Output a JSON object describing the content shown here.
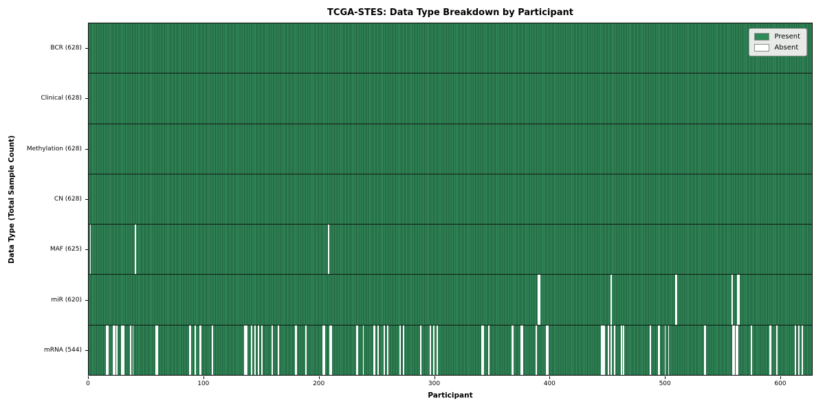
{
  "chart_data": {
    "type": "heatmap",
    "title": "TCGA-STES: Data Type Breakdown by Participant",
    "xlabel": "Participant",
    "ylabel": "Data Type (Total Sample Count)",
    "x_ticks": [
      0,
      100,
      200,
      300,
      400,
      500,
      600
    ],
    "x_max": 628,
    "grid": false,
    "legend": {
      "position": "upper right",
      "entries": [
        {
          "label": "Present",
          "color": "#2e8b57"
        },
        {
          "label": "Absent",
          "color": "#ffffff"
        }
      ]
    },
    "colors": {
      "present": "#2e8b57",
      "present_edge": "#1d5b39",
      "absent": "#ffffff"
    },
    "rows": [
      {
        "data_type": "BCR",
        "label": "BCR (628)",
        "present": 628,
        "total": 628,
        "absent_participants": []
      },
      {
        "data_type": "Clinical",
        "label": "Clinical (628)",
        "present": 628,
        "total": 628,
        "absent_participants": []
      },
      {
        "data_type": "Methylation",
        "label": "Methylation (628)",
        "present": 628,
        "total": 628,
        "absent_participants": []
      },
      {
        "data_type": "CN",
        "label": "CN (628)",
        "present": 628,
        "total": 628,
        "absent_participants": []
      },
      {
        "data_type": "MAF",
        "label": "MAF (625)",
        "present": 625,
        "total": 628,
        "absent_participants": [
          1,
          40,
          208
        ]
      },
      {
        "data_type": "miR",
        "label": "miR (620)",
        "present": 620,
        "total": 628,
        "absent_participants": [
          390,
          391,
          453,
          509,
          510,
          558,
          563,
          564
        ]
      },
      {
        "data_type": "mRNA",
        "label": "mRNA (544)",
        "present": 544,
        "total": 628,
        "absent_participants": [
          15,
          16,
          21,
          22,
          24,
          28,
          29,
          30,
          36,
          38,
          58,
          59,
          87,
          88,
          92,
          96,
          97,
          107,
          135,
          136,
          137,
          141,
          144,
          147,
          150,
          159,
          164,
          179,
          180,
          188,
          203,
          204,
          209,
          210,
          232,
          233,
          238,
          247,
          248,
          251,
          256,
          259,
          270,
          273,
          288,
          296,
          299,
          302,
          341,
          342,
          347,
          367,
          368,
          375,
          376,
          388,
          397,
          398,
          445,
          446,
          447,
          451,
          453,
          456,
          462,
          464,
          487,
          494,
          495,
          500,
          503,
          534,
          535,
          559,
          560,
          562,
          563,
          575,
          591,
          592,
          597,
          613,
          616,
          619
        ]
      }
    ]
  }
}
